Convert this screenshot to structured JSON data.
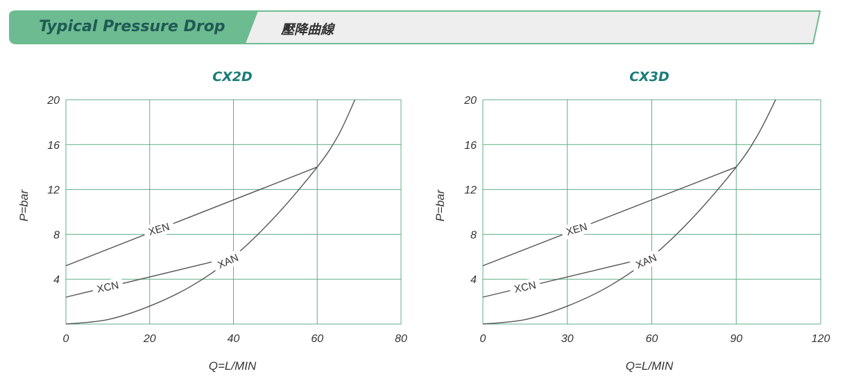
{
  "header": {
    "title_en": "Typical Pressure Drop",
    "title_zh": "壓降曲線",
    "accent_color": "#6dbb90",
    "tab_fill": "#eeeeee"
  },
  "chart_data": [
    {
      "type": "line",
      "title": "CX2D",
      "xlabel": "Q=L/MIN",
      "ylabel": "P=bar",
      "xlim": [
        0,
        80
      ],
      "ylim": [
        0,
        20
      ],
      "xticks": [
        "0",
        "20",
        "40",
        "60",
        "80"
      ],
      "yticks": [
        "4",
        "8",
        "12",
        "16",
        "20"
      ],
      "grid": true,
      "grid_color": "#5fae86",
      "series": [
        {
          "name": "XEN",
          "points": [
            [
              0,
              5.2
            ],
            [
              60,
              14
            ]
          ]
        },
        {
          "name": "XCN",
          "points": [
            [
              0,
              2.4
            ],
            [
              40,
              6
            ]
          ]
        },
        {
          "name": "XAN",
          "points": [
            [
              0,
              0
            ],
            [
              10,
              0.4
            ],
            [
              20,
              1.6
            ],
            [
              30,
              3.4
            ],
            [
              40,
              6
            ],
            [
              50,
              9.6
            ],
            [
              60,
              14
            ],
            [
              65,
              16.8
            ],
            [
              69,
              20
            ]
          ]
        }
      ]
    },
    {
      "type": "line",
      "title": "CX3D",
      "xlabel": "Q=L/MIN",
      "ylabel": "P=bar",
      "xlim": [
        0,
        120
      ],
      "ylim": [
        0,
        20
      ],
      "xticks": [
        "0",
        "30",
        "60",
        "90",
        "120"
      ],
      "yticks": [
        "4",
        "8",
        "12",
        "16",
        "20"
      ],
      "grid": true,
      "grid_color": "#5fae86",
      "series": [
        {
          "name": "XEN",
          "points": [
            [
              0,
              5.2
            ],
            [
              90,
              14
            ]
          ]
        },
        {
          "name": "XCN",
          "points": [
            [
              0,
              2.4
            ],
            [
              60,
              6
            ]
          ]
        },
        {
          "name": "XAN",
          "points": [
            [
              0,
              0
            ],
            [
              15,
              0.4
            ],
            [
              30,
              1.6
            ],
            [
              45,
              3.4
            ],
            [
              60,
              6
            ],
            [
              75,
              9.6
            ],
            [
              90,
              14
            ],
            [
              97.5,
              16.8
            ],
            [
              104,
              20
            ]
          ]
        }
      ]
    }
  ]
}
